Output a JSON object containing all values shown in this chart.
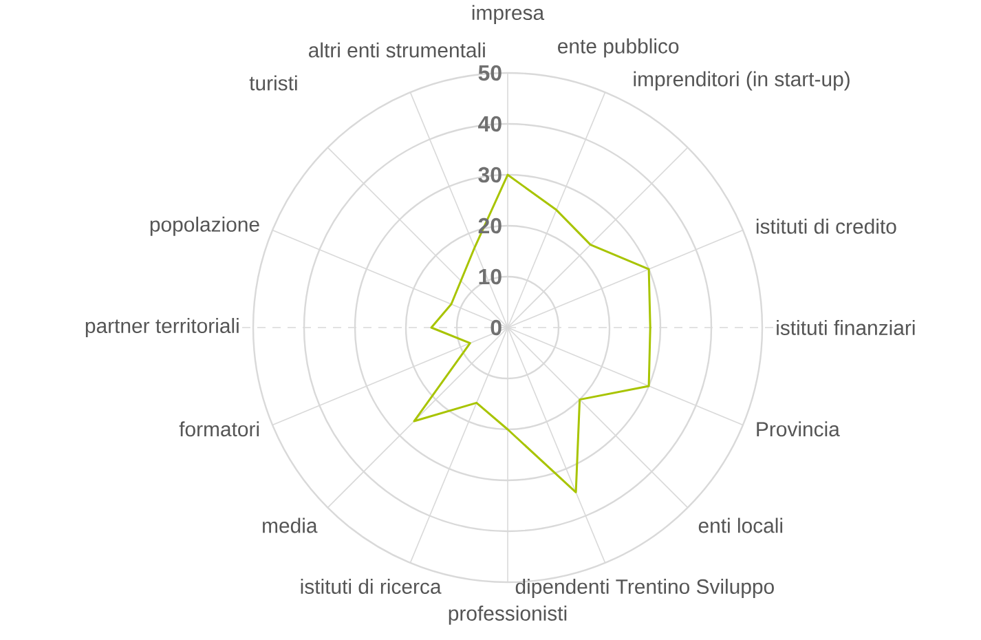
{
  "chart_data": {
    "type": "radar",
    "categories": [
      "impresa",
      "ente pubblico",
      "imprenditori (in start-up)",
      "istituti di credito",
      "istituti finanziari",
      "Provincia",
      "enti locali",
      "dipendenti Trentino Sviluppo",
      "professionisti",
      "istituti di ricerca",
      "media",
      "formatori",
      "partner territoriali",
      "popolazione",
      "turisti",
      "altri enti strumentali"
    ],
    "series": [
      {
        "color": "#a8c400",
        "values": [
          30,
          25,
          23,
          30,
          28,
          30,
          20,
          35,
          20,
          16,
          26,
          8,
          15,
          12,
          13,
          17
        ]
      }
    ],
    "ylim": [
      0,
      50
    ],
    "yticks": [
      0,
      10,
      20,
      30,
      40,
      50
    ],
    "grid": true
  }
}
